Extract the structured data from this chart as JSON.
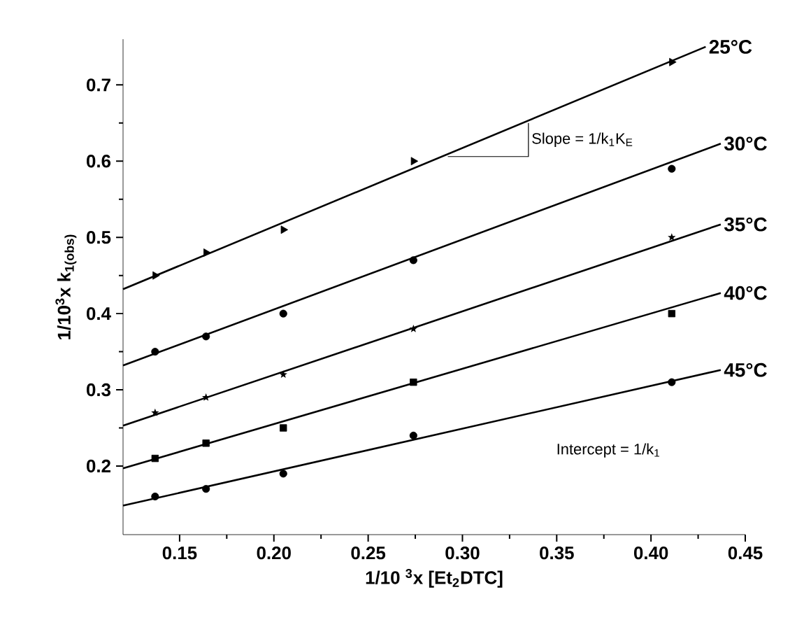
{
  "chart_data": {
    "type": "scatter",
    "xlabel": "1/10 $^{3}$x [Et$_{2}$DTC]",
    "ylabel": "1/10$^{3}$x k$_{1(obs)}$",
    "xlim": [
      0.12,
      0.45
    ],
    "ylim": [
      0.11,
      0.76
    ],
    "xticks": [
      0.15,
      {
        "value": 0.2,
        "label": "0.20"
      },
      0.25,
      {
        "value": 0.3,
        "label": "0.30"
      },
      0.35,
      {
        "value": 0.4,
        "label": "0.40"
      },
      0.45
    ],
    "yticks": [
      0.2,
      0.3,
      0.4,
      0.5,
      0.6,
      0.7
    ],
    "grid": false,
    "series": [
      {
        "marker": "triangle",
        "color": "#000000",
        "x": [
          0.137,
          0.164,
          0.205,
          0.274,
          0.411
        ],
        "values": [
          0.45,
          0.48,
          0.51,
          0.6,
          0.73
        ]
      },
      {
        "marker": "circle",
        "color": "#000000",
        "x": [
          0.137,
          0.164,
          0.205,
          0.274,
          0.411
        ],
        "values": [
          0.35,
          0.37,
          0.4,
          0.47,
          0.59
        ]
      },
      {
        "marker": "star",
        "color": "#000000",
        "x": [
          0.137,
          0.164,
          0.205,
          0.274,
          0.411
        ],
        "values": [
          0.27,
          0.29,
          0.32,
          0.38,
          0.5
        ]
      },
      {
        "marker": "square",
        "color": "#000000",
        "x": [
          0.137,
          0.164,
          0.205,
          0.274,
          0.411
        ],
        "values": [
          0.21,
          0.23,
          0.25,
          0.31,
          0.4
        ]
      },
      {
        "marker": "circle",
        "color": "#000000",
        "x": [
          0.137,
          0.164,
          0.205,
          0.274,
          0.411
        ],
        "values": [
          0.16,
          0.17,
          0.19,
          0.24,
          0.31
        ]
      },
      {
        "type": "line",
        "name": "25°C",
        "color": "#000000",
        "x": [
          0.12,
          0.429
        ],
        "values": [
          0.432,
          0.75
        ]
      },
      {
        "type": "line",
        "name": "30°C",
        "color": "#000000",
        "x": [
          0.12,
          0.437
        ],
        "values": [
          0.332,
          0.623
        ]
      },
      {
        "type": "line",
        "name": "35°C",
        "color": "#000000",
        "x": [
          0.12,
          0.437
        ],
        "values": [
          0.253,
          0.517
        ]
      },
      {
        "type": "line",
        "name": "40°C",
        "color": "#000000",
        "x": [
          0.12,
          0.437
        ],
        "values": [
          0.197,
          0.427
        ]
      },
      {
        "type": "line",
        "name": "45°C",
        "color": "#000000",
        "x": [
          0.12,
          0.437
        ],
        "values": [
          0.148,
          0.326
        ]
      }
    ],
    "annotations": [
      {
        "text": "Slope = 1/k$_{1}$K$_{E}$",
        "x": 0.335,
        "y": 0.65
      },
      "Intercept = 1/k$_{1}$"
    ]
  }
}
